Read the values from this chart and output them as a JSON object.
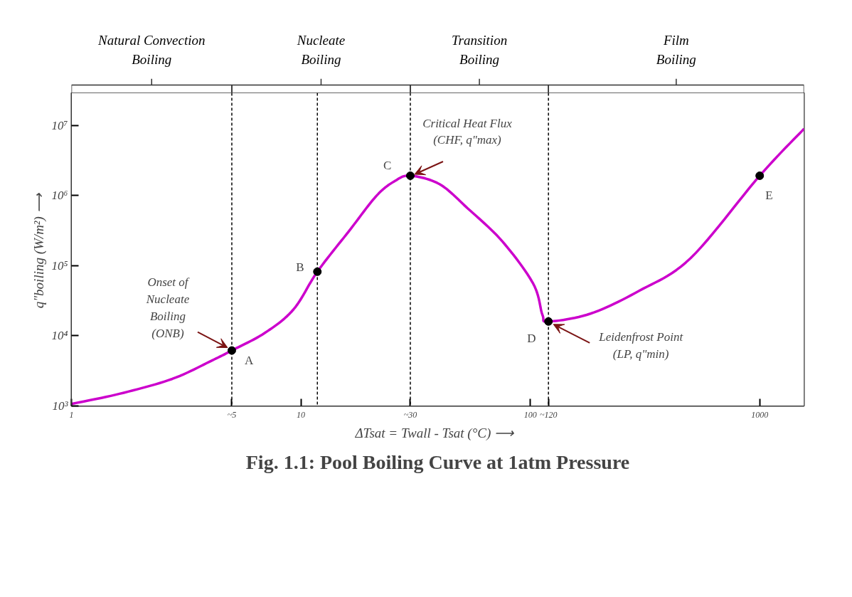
{
  "chart_data": {
    "type": "line",
    "title": "Fig. 1.1: Pool Boiling Curve at 1atm Pressure",
    "xlabel": "ΔTsat = Twall - Tsat (°C)   ⟶",
    "ylabel": "q\"boiling (W/m²)  ⟶",
    "log": "xy",
    "xlim": [
      1,
      1560
    ],
    "ylim": [
      1000,
      29000000
    ],
    "xticks": [
      1,
      {
        "value": 5,
        "label": "~5"
      },
      10,
      {
        "value": 30,
        "label": "~30"
      },
      100,
      {
        "value": 120,
        "label": "~120"
      },
      1000
    ],
    "yticks": [
      {
        "value": 1000,
        "label": "10³"
      },
      {
        "value": 10000,
        "label": "10⁴"
      },
      {
        "value": 100000,
        "label": "10⁵"
      },
      {
        "value": 1000000,
        "label": "10⁶"
      },
      {
        "value": 10000000,
        "label": "10⁷"
      }
    ],
    "series": [
      {
        "color": "#cc00cc",
        "x": [
          1,
          1.62,
          2.75,
          4.1,
          5,
          6.97,
          9.29,
          11.8,
          16.2,
          21.4,
          25.8,
          30,
          40.2,
          53.4,
          75.4,
          103,
          113,
          120,
          183,
          298,
          500,
          1000,
          1560
        ],
        "values": [
          1070,
          1490,
          2430,
          4450,
          6170,
          11000,
          23800,
          82000,
          310000,
          995000,
          1620000,
          1910000,
          1450000,
          653000,
          223000,
          55200,
          19800,
          16000,
          20700,
          43700,
          128000,
          1910000,
          8900000
        ]
      },
      {
        "type": "scatter",
        "color": "#000000",
        "marker": "circle",
        "x": [
          5,
          11.8,
          30,
          120,
          1000
        ],
        "values": [
          6170,
          82000,
          1910000,
          16000,
          1910000
        ]
      }
    ],
    "ref_lines": [
      {
        "axis": "x",
        "value": 5,
        "line_style": "dashed",
        "color": "#000000"
      },
      {
        "axis": "x",
        "value": 11.8,
        "line_style": "dashed",
        "color": "#000000"
      },
      {
        "axis": "x",
        "value": 30,
        "line_style": "dashed",
        "color": "#000000"
      },
      {
        "axis": "x",
        "value": 120,
        "line_style": "dashed",
        "color": "#000000"
      }
    ],
    "bands": [
      {
        "axis": "x",
        "from": 1,
        "to": 5,
        "label": "Natural Convection Boiling",
        "color": "#ffffff"
      },
      {
        "axis": "x",
        "from": 5,
        "to": 30,
        "label": "Nucleate Boiling",
        "color": "#ffffff"
      },
      {
        "axis": "x",
        "from": 30,
        "to": 120,
        "label": "Transition Boiling",
        "color": "#ffffff"
      },
      {
        "axis": "x",
        "from": 120,
        "to": 1560,
        "label": "Film Boiling",
        "color": "#ffffff"
      }
    ],
    "annotations": [
      {
        "text": "A",
        "x": 5,
        "y": 6170
      },
      {
        "text": "B",
        "x": 11.8,
        "y": 82000
      },
      {
        "text": "C",
        "x": 30,
        "y": 1910000
      },
      {
        "text": "D",
        "x": 120,
        "y": 16000
      },
      {
        "text": "E",
        "x": 1000,
        "y": 1910000
      },
      {
        "text": "Onset of\nNucleate\nBoiling\n(ONB)",
        "x": 5,
        "y": 6170
      },
      {
        "text": "Critical Heat Flux\n(CHF, q\"max)",
        "x": 30,
        "y": 1910000
      },
      {
        "text": "Leidenfrost Point\n(LP, q\"min)",
        "x": 120,
        "y": 16000
      }
    ],
    "grid": false
  }
}
